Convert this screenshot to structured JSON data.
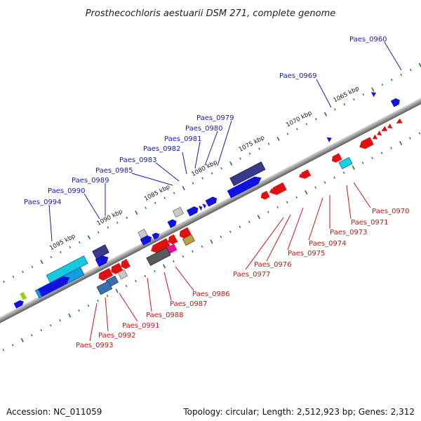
{
  "title": "Prosthecochloris aestuarii DSM 271, complete genome",
  "footer": {
    "accession": "Accession: NC_011059",
    "summary": "Topology: circular; Length: 2,512,923 bp; Genes: 2,312"
  },
  "kbp_labels": [
    "1065 kbp",
    "1070 kbp",
    "1075 kbp",
    "1080 kbp",
    "1085 kbp",
    "1090 kbp",
    "1095 kbp"
  ],
  "top_labels": [
    "Paes_0960",
    "Paes_0969",
    "Paes_0979",
    "Paes_0980",
    "Paes_0981",
    "Paes_0982",
    "Paes_0983",
    "Paes_0985",
    "Paes_0989",
    "Paes_0990",
    "Paes_0994"
  ],
  "bottom_labels": [
    "Paes_0970",
    "Paes_0971",
    "Paes_0973",
    "Paes_0974",
    "Paes_0975",
    "Paes_0976",
    "Paes_0977",
    "Paes_0986",
    "Paes_0987",
    "Paes_0988",
    "Paes_0991",
    "Paes_0992",
    "Paes_0993"
  ],
  "colors": {
    "forward": "#1010e0",
    "reverse": "#e01010",
    "backbone": "#888888",
    "tick": "#1f7a1f"
  }
}
